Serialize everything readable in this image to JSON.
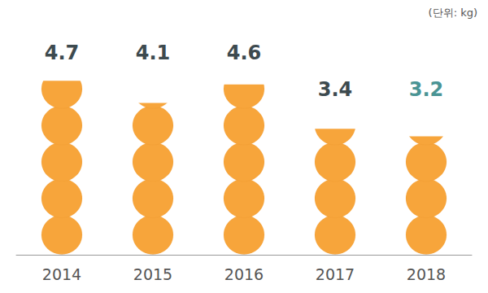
{
  "chart_data": {
    "type": "pictorialBar",
    "subtitle": "(단위: kg)",
    "categories": [
      "2014",
      "2015",
      "2016",
      "2017",
      "2018"
    ],
    "values": [
      4.7,
      4.1,
      4.6,
      3.4,
      3.2
    ],
    "color": "#f7a53b",
    "ylim": [
      0,
      6
    ],
    "yticks": [
      0,
      6
    ],
    "grid": false,
    "data_labels": true,
    "tick_labels": "x"
  }
}
